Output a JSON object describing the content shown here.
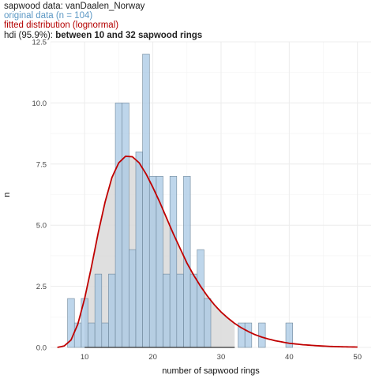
{
  "header": {
    "title": "sapwood data: vanDaalen_Norway",
    "original": "original data (n = 104)",
    "fitted": "fitted distribution (lognormal)",
    "hdi_prefix": "hdi (95.9%): ",
    "hdi_bold": "between 10 and 32 sapwood rings"
  },
  "chart_data": {
    "type": "bar",
    "xlabel": "number of sapwood rings",
    "ylabel": "n",
    "xlim": [
      5,
      52
    ],
    "ylim": [
      0,
      12.5
    ],
    "x_ticks": [
      10,
      20,
      30,
      40,
      50
    ],
    "y_ticks": [
      0.0,
      2.5,
      5.0,
      7.5,
      10.0,
      12.5
    ],
    "y_tick_labels": [
      "0.0",
      "2.5",
      "5.0",
      "7.5",
      "10.0",
      "12.5"
    ],
    "grid": true,
    "legend": "none",
    "series": [
      {
        "name": "original data (n = 104)",
        "x": [
          8,
          9,
          10,
          11,
          12,
          13,
          14,
          15,
          16,
          17,
          18,
          19,
          20,
          21,
          22,
          23,
          24,
          25,
          26,
          27,
          28,
          33,
          34,
          36,
          40
        ],
        "values": [
          2,
          1,
          2,
          1,
          3,
          1,
          3,
          10,
          10,
          4,
          8,
          12,
          7,
          7,
          3,
          7,
          3,
          7,
          3,
          4,
          2,
          1,
          1,
          1,
          1
        ]
      },
      {
        "name": "fitted distribution (lognormal)",
        "x": [
          6,
          7,
          8,
          9,
          10,
          11,
          12,
          13,
          14,
          15,
          16,
          17,
          18,
          19,
          20,
          21,
          22,
          23,
          24,
          25,
          26,
          27,
          28,
          29,
          30,
          31,
          32,
          33,
          34,
          35,
          36,
          37,
          38,
          40,
          42,
          44,
          46,
          48,
          50
        ],
        "values": [
          0.0,
          0.06,
          0.3,
          0.95,
          2.0,
          3.3,
          4.7,
          5.95,
          6.95,
          7.55,
          7.82,
          7.8,
          7.55,
          7.1,
          6.55,
          5.95,
          5.3,
          4.65,
          4.05,
          3.45,
          2.95,
          2.5,
          2.1,
          1.75,
          1.45,
          1.2,
          0.98,
          0.8,
          0.65,
          0.52,
          0.42,
          0.34,
          0.27,
          0.17,
          0.11,
          0.07,
          0.04,
          0.025,
          0.015
        ]
      }
    ],
    "hdi": {
      "lower": 10,
      "upper": 32
    },
    "colors": {
      "bar_fill": "#a8c8e4",
      "bar_stroke": "#6f879b",
      "curve": "#c00000",
      "hdi_fill": "#d9d9d9",
      "hdi_line": "#333333",
      "grid": "#ececec"
    }
  }
}
